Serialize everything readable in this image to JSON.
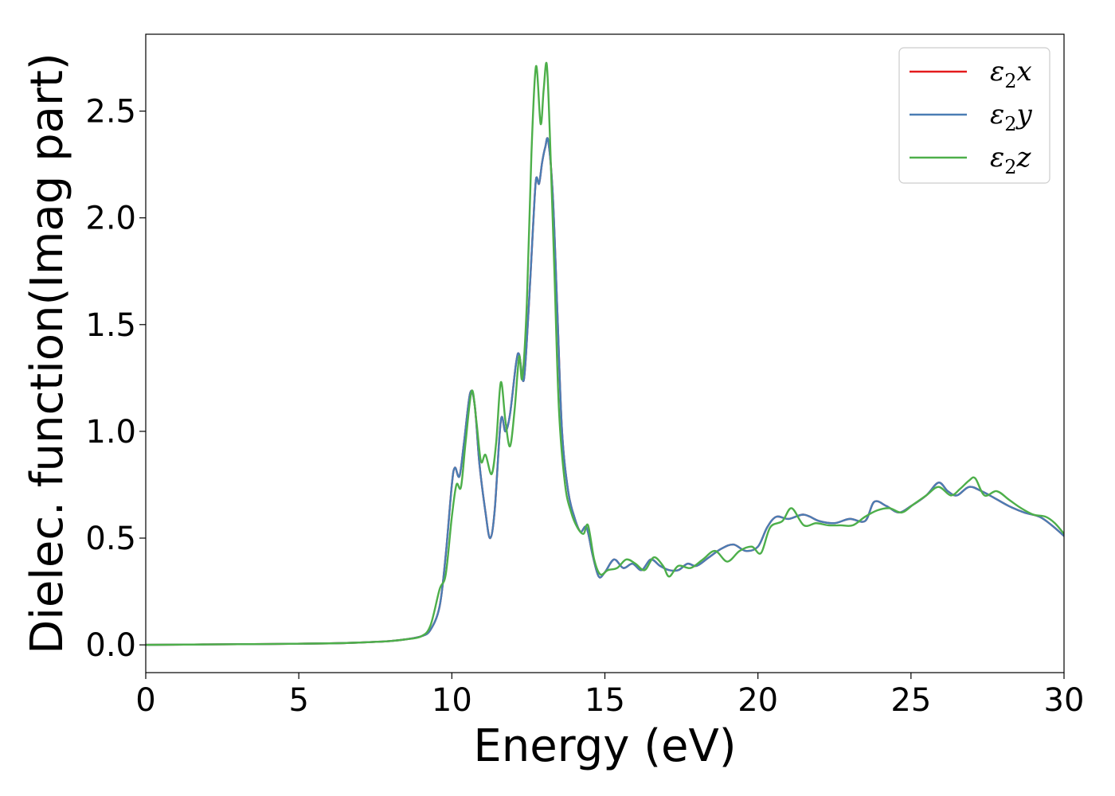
{
  "chart_data": {
    "type": "line",
    "xlabel": "Energy (eV)",
    "ylabel": "Dielec. function(Imag part)",
    "xlim": [
      0,
      30
    ],
    "ylim": [
      -0.13,
      2.86
    ],
    "xticks": [
      0,
      5,
      10,
      15,
      20,
      25,
      30
    ],
    "yticks": [
      0.0,
      0.5,
      1.0,
      1.5,
      2.0,
      2.5
    ],
    "xtick_labels": [
      "0",
      "5",
      "10",
      "15",
      "20",
      "25",
      "30"
    ],
    "ytick_labels": [
      "0.0",
      "0.5",
      "1.0",
      "1.5",
      "2.0",
      "2.5"
    ],
    "grid": false,
    "legend_position": "upper right",
    "series": [
      {
        "name": "ε₂x",
        "legend": {
          "base": "ε",
          "sub": "2",
          "suffix": "x"
        },
        "color": "#e41a1c",
        "x": [
          0,
          2,
          4,
          6,
          7,
          8,
          8.5,
          9,
          9.3,
          9.6,
          9.8,
          10.0,
          10.1,
          10.25,
          10.4,
          10.6,
          10.75,
          10.9,
          11.1,
          11.25,
          11.4,
          11.6,
          11.75,
          11.9,
          12.1,
          12.2,
          12.35,
          12.5,
          12.65,
          12.75,
          12.85,
          12.95,
          13.05,
          13.15,
          13.3,
          13.45,
          13.6,
          13.8,
          14.0,
          14.2,
          14.4,
          14.6,
          14.8,
          15.0,
          15.3,
          15.6,
          15.9,
          16.2,
          16.5,
          16.8,
          17.1,
          17.4,
          17.7,
          18.0,
          18.4,
          18.8,
          19.2,
          19.6,
          20.0,
          20.3,
          20.6,
          21.0,
          21.5,
          22.0,
          22.5,
          23.0,
          23.5,
          23.8,
          24.2,
          24.6,
          25.0,
          25.5,
          25.9,
          26.2,
          26.5,
          26.9,
          27.3,
          27.7,
          28.2,
          28.7,
          29.2,
          29.6,
          30.0
        ],
        "y": [
          0.0,
          0.002,
          0.004,
          0.007,
          0.011,
          0.018,
          0.026,
          0.04,
          0.07,
          0.18,
          0.42,
          0.75,
          0.83,
          0.79,
          0.95,
          1.18,
          1.12,
          0.85,
          0.62,
          0.5,
          0.63,
          1.05,
          1.0,
          1.08,
          1.32,
          1.36,
          1.24,
          1.55,
          1.95,
          2.18,
          2.16,
          2.26,
          2.33,
          2.36,
          2.1,
          1.55,
          1.0,
          0.72,
          0.6,
          0.53,
          0.55,
          0.42,
          0.32,
          0.34,
          0.4,
          0.36,
          0.38,
          0.35,
          0.4,
          0.37,
          0.35,
          0.35,
          0.38,
          0.37,
          0.41,
          0.45,
          0.47,
          0.44,
          0.46,
          0.55,
          0.6,
          0.59,
          0.61,
          0.58,
          0.57,
          0.59,
          0.58,
          0.67,
          0.65,
          0.62,
          0.65,
          0.7,
          0.76,
          0.72,
          0.7,
          0.74,
          0.72,
          0.69,
          0.65,
          0.62,
          0.6,
          0.56,
          0.51
        ]
      },
      {
        "name": "ε₂y",
        "legend": {
          "base": "ε",
          "sub": "2",
          "suffix": "y"
        },
        "color": "#4a7db4",
        "x": [
          0,
          2,
          4,
          6,
          7,
          8,
          8.5,
          9,
          9.3,
          9.6,
          9.8,
          10.0,
          10.1,
          10.25,
          10.4,
          10.6,
          10.75,
          10.9,
          11.1,
          11.25,
          11.4,
          11.6,
          11.75,
          11.9,
          12.1,
          12.2,
          12.35,
          12.5,
          12.65,
          12.75,
          12.85,
          12.95,
          13.05,
          13.15,
          13.3,
          13.45,
          13.6,
          13.8,
          14.0,
          14.2,
          14.4,
          14.6,
          14.8,
          15.0,
          15.3,
          15.6,
          15.9,
          16.2,
          16.5,
          16.8,
          17.1,
          17.4,
          17.7,
          18.0,
          18.4,
          18.8,
          19.2,
          19.6,
          20.0,
          20.3,
          20.6,
          21.0,
          21.5,
          22.0,
          22.5,
          23.0,
          23.5,
          23.8,
          24.2,
          24.6,
          25.0,
          25.5,
          25.9,
          26.2,
          26.5,
          26.9,
          27.3,
          27.7,
          28.2,
          28.7,
          29.2,
          29.6,
          30.0
        ],
        "y": [
          0.0,
          0.002,
          0.004,
          0.007,
          0.011,
          0.018,
          0.026,
          0.04,
          0.07,
          0.18,
          0.42,
          0.75,
          0.83,
          0.79,
          0.95,
          1.18,
          1.12,
          0.85,
          0.62,
          0.5,
          0.63,
          1.05,
          1.0,
          1.08,
          1.32,
          1.36,
          1.24,
          1.55,
          1.95,
          2.18,
          2.16,
          2.26,
          2.33,
          2.36,
          2.1,
          1.55,
          1.0,
          0.72,
          0.6,
          0.53,
          0.55,
          0.42,
          0.32,
          0.34,
          0.4,
          0.36,
          0.38,
          0.35,
          0.4,
          0.37,
          0.35,
          0.35,
          0.38,
          0.37,
          0.41,
          0.45,
          0.47,
          0.44,
          0.46,
          0.55,
          0.6,
          0.59,
          0.61,
          0.58,
          0.57,
          0.59,
          0.58,
          0.67,
          0.65,
          0.62,
          0.65,
          0.7,
          0.76,
          0.72,
          0.7,
          0.74,
          0.72,
          0.69,
          0.65,
          0.62,
          0.6,
          0.56,
          0.51
        ]
      },
      {
        "name": "ε₂z",
        "legend": {
          "base": "ε",
          "sub": "2",
          "suffix": "z"
        },
        "color": "#4daf4a",
        "x": [
          0,
          2,
          4,
          6,
          7,
          8,
          8.5,
          9,
          9.3,
          9.6,
          9.8,
          10.0,
          10.15,
          10.3,
          10.45,
          10.65,
          10.8,
          10.95,
          11.1,
          11.3,
          11.45,
          11.6,
          11.75,
          11.9,
          12.05,
          12.2,
          12.3,
          12.45,
          12.6,
          12.75,
          12.9,
          13.0,
          13.1,
          13.2,
          13.35,
          13.5,
          13.7,
          13.9,
          14.1,
          14.3,
          14.45,
          14.65,
          14.85,
          15.1,
          15.4,
          15.7,
          16.0,
          16.3,
          16.6,
          16.9,
          17.1,
          17.4,
          17.8,
          18.2,
          18.6,
          19.0,
          19.4,
          19.8,
          20.1,
          20.4,
          20.8,
          21.1,
          21.5,
          21.9,
          22.3,
          22.7,
          23.1,
          23.5,
          23.9,
          24.3,
          24.7,
          25.1,
          25.5,
          25.9,
          26.3,
          26.6,
          26.9,
          27.1,
          27.4,
          27.8,
          28.2,
          28.6,
          29.0,
          29.4,
          29.7,
          30.0
        ],
        "y": [
          0.0,
          0.002,
          0.004,
          0.007,
          0.011,
          0.018,
          0.026,
          0.04,
          0.09,
          0.26,
          0.33,
          0.6,
          0.75,
          0.74,
          0.95,
          1.19,
          1.05,
          0.86,
          0.89,
          0.8,
          0.95,
          1.23,
          1.05,
          0.93,
          1.1,
          1.35,
          1.25,
          1.6,
          2.3,
          2.71,
          2.44,
          2.6,
          2.72,
          2.4,
          1.75,
          1.1,
          0.75,
          0.62,
          0.55,
          0.52,
          0.56,
          0.4,
          0.33,
          0.35,
          0.36,
          0.4,
          0.38,
          0.35,
          0.41,
          0.37,
          0.32,
          0.37,
          0.36,
          0.4,
          0.44,
          0.39,
          0.44,
          0.46,
          0.43,
          0.55,
          0.58,
          0.64,
          0.56,
          0.57,
          0.56,
          0.56,
          0.56,
          0.6,
          0.63,
          0.64,
          0.62,
          0.66,
          0.7,
          0.74,
          0.7,
          0.73,
          0.77,
          0.78,
          0.7,
          0.72,
          0.68,
          0.64,
          0.61,
          0.6,
          0.57,
          0.52
        ]
      }
    ]
  }
}
